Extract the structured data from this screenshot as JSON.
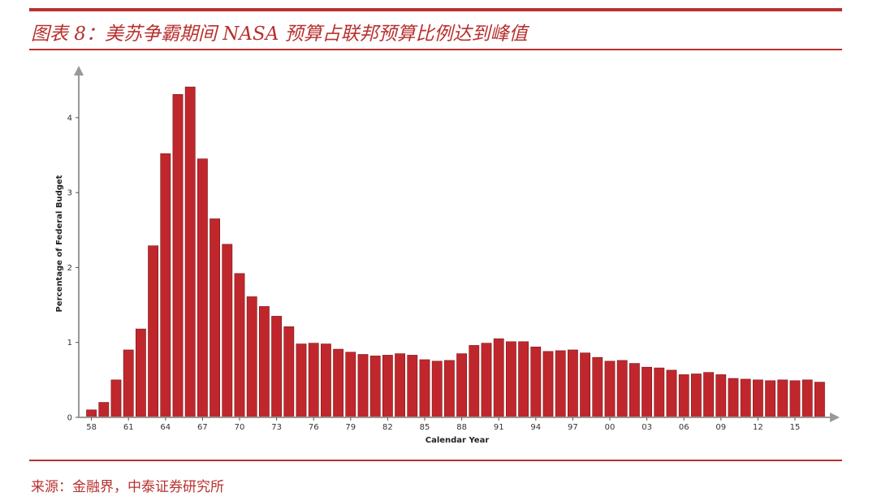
{
  "title": "图表 8：美苏争霸期间 NASA 预算占联邦预算比例达到峰值",
  "source": "来源：金融界，中泰证券研究所",
  "colors": {
    "bar": "#c0272d",
    "bar_edge": "#7a1416",
    "accent": "#b8312f",
    "axis": "#999999"
  },
  "chart_data": {
    "type": "bar",
    "xlabel": "Calendar Year",
    "ylabel": "Percentage of Federal Budget",
    "ylim": [
      0,
      4.4
    ],
    "yticks": [
      0,
      1,
      2,
      3,
      4
    ],
    "xtick_labels": [
      "58",
      "61",
      "64",
      "67",
      "70",
      "73",
      "76",
      "79",
      "82",
      "85",
      "88",
      "91",
      "94",
      "97",
      "00",
      "03",
      "06",
      "09",
      "12",
      "15"
    ],
    "categories": [
      "1958",
      "1959",
      "1960",
      "1961",
      "1962",
      "1963",
      "1964",
      "1965",
      "1966",
      "1967",
      "1968",
      "1969",
      "1970",
      "1971",
      "1972",
      "1973",
      "1974",
      "1975",
      "1976",
      "1977",
      "1978",
      "1979",
      "1980",
      "1981",
      "1982",
      "1983",
      "1984",
      "1985",
      "1986",
      "1987",
      "1988",
      "1989",
      "1990",
      "1991",
      "1992",
      "1993",
      "1994",
      "1995",
      "1996",
      "1997",
      "1998",
      "1999",
      "2000",
      "2001",
      "2002",
      "2003",
      "2004",
      "2005",
      "2006",
      "2007",
      "2008",
      "2009",
      "2010",
      "2011",
      "2012",
      "2013",
      "2014",
      "2015",
      "2016",
      "2017"
    ],
    "values": [
      0.1,
      0.2,
      0.5,
      0.9,
      1.18,
      2.29,
      3.52,
      4.31,
      4.41,
      3.45,
      2.65,
      2.31,
      1.92,
      1.61,
      1.48,
      1.35,
      1.21,
      0.98,
      0.99,
      0.98,
      0.91,
      0.87,
      0.84,
      0.82,
      0.83,
      0.85,
      0.83,
      0.77,
      0.75,
      0.76,
      0.85,
      0.96,
      0.99,
      1.05,
      1.01,
      1.01,
      0.94,
      0.88,
      0.89,
      0.9,
      0.86,
      0.8,
      0.75,
      0.76,
      0.72,
      0.67,
      0.66,
      0.63,
      0.57,
      0.58,
      0.6,
      0.57,
      0.52,
      0.51,
      0.5,
      0.49,
      0.5,
      0.49,
      0.5,
      0.47
    ]
  }
}
